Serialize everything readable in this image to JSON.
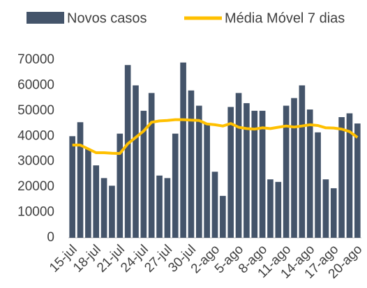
{
  "chart_data": {
    "type": "bar-line",
    "categories": [
      "15-jul",
      null,
      null,
      "18-jul",
      null,
      null,
      "21-jul",
      null,
      null,
      "24-jul",
      null,
      null,
      "27-jul",
      null,
      null,
      "30-jul",
      null,
      null,
      "2-ago",
      null,
      null,
      "5-ago",
      null,
      null,
      "8-ago",
      null,
      null,
      "11-ago",
      null,
      null,
      "14-ago",
      null,
      null,
      "17-ago",
      null,
      null,
      "20-ago"
    ],
    "series": [
      {
        "name": "Novos casos",
        "type": "bar",
        "color": "#44546a",
        "values": [
          40000,
          45500,
          35000,
          28500,
          23500,
          20500,
          41000,
          68000,
          60000,
          50000,
          57000,
          24500,
          23500,
          41000,
          69000,
          58000,
          52000,
          45000,
          26000,
          16500,
          51500,
          57000,
          53000,
          50000,
          50000,
          23000,
          22000,
          52000,
          55000,
          60000,
          50500,
          41500,
          23000,
          19500,
          47500,
          49000,
          45000
        ]
      },
      {
        "name": "Média Móvel 7 dias",
        "type": "line",
        "color": "#ffc000",
        "values": [
          36500,
          36500,
          35000,
          33500,
          33500,
          33300,
          33200,
          37000,
          39500,
          42000,
          45500,
          46000,
          46200,
          46500,
          46500,
          46300,
          46200,
          44800,
          44500,
          44000,
          45000,
          43500,
          43000,
          42800,
          43300,
          43000,
          43500,
          44000,
          43600,
          44000,
          44500,
          44200,
          43300,
          43200,
          42800,
          41800,
          39500
        ]
      }
    ],
    "ylim": [
      0,
      70000
    ],
    "yticks": [
      0,
      10000,
      20000,
      30000,
      40000,
      50000,
      60000,
      70000
    ],
    "legend": "top",
    "grid": false
  }
}
